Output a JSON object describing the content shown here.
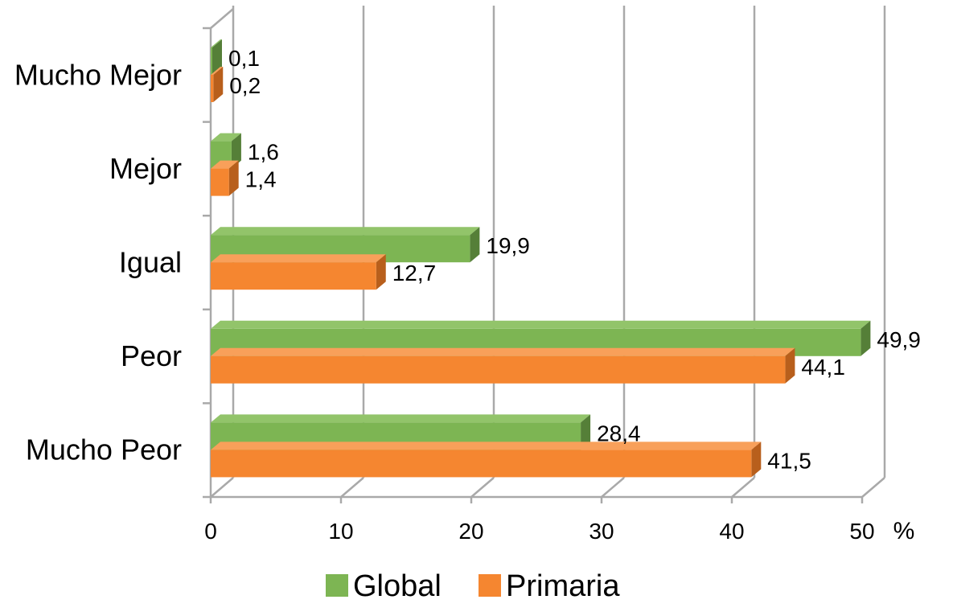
{
  "chart_data": {
    "type": "bar",
    "orientation": "horizontal",
    "style": "3d-clustered",
    "categories": [
      "Mucho Mejor",
      "Mejor",
      "Igual",
      "Peor",
      "Mucho Peor"
    ],
    "series": [
      {
        "name": "Global",
        "values": [
          0.1,
          1.6,
          19.9,
          49.9,
          28.4
        ],
        "labels": [
          "0,1",
          "1,6",
          "19,9",
          "49,9",
          "28,4"
        ]
      },
      {
        "name": "Primaria",
        "values": [
          0.2,
          1.4,
          12.7,
          44.1,
          41.5
        ],
        "labels": [
          "0,2",
          "1,4",
          "12,7",
          "44,1",
          "41,5"
        ]
      }
    ],
    "x_ticks": [
      "0",
      "10",
      "20",
      "30",
      "40",
      "50"
    ],
    "xlim": [
      0,
      50
    ],
    "x_unit": "%",
    "grid": true,
    "legend_position": "bottom"
  },
  "colors": {
    "Global": {
      "front": "#7db553",
      "top": "#92c46a",
      "side": "#557f38"
    },
    "Primaria": {
      "front": "#f58630",
      "top": "#f8a05a",
      "side": "#b85f1c"
    },
    "grid": "#a9a9a9"
  }
}
